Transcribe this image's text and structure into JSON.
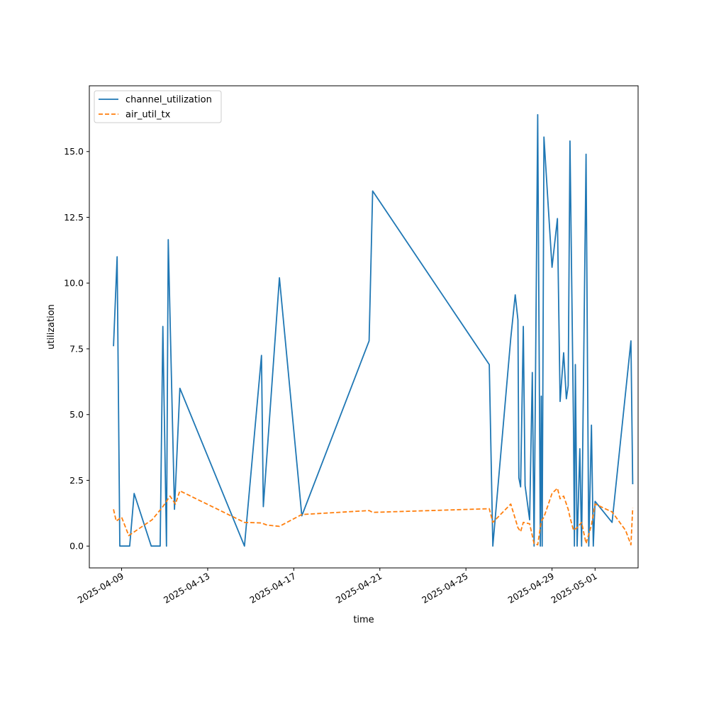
{
  "chart_data": {
    "type": "line",
    "title": "",
    "xlabel": "time",
    "ylabel": "utilization",
    "x_axis_type": "date",
    "xlim": [
      "2025-04-07 12:00",
      "2025-05-03 00:00"
    ],
    "ylim": [
      -0.83,
      17.5
    ],
    "grid": false,
    "legend": "top-left",
    "x_ticks": [
      "2025-04-09",
      "2025-04-13",
      "2025-04-17",
      "2025-04-21",
      "2025-04-25",
      "2025-04-29",
      "2025-05-01"
    ],
    "y_ticks": [
      "0.0",
      "2.5",
      "5.0",
      "7.5",
      "10.0",
      "12.5",
      "15.0"
    ],
    "series": [
      {
        "name": "channel_utilization",
        "color": "#1f77b4",
        "style": "solid",
        "points": [
          [
            "2025-04-08 15:00",
            7.6
          ],
          [
            "2025-04-08 19:00",
            11.0
          ],
          [
            "2025-04-08 22:00",
            0.0
          ],
          [
            "2025-04-09 09:00",
            0.0
          ],
          [
            "2025-04-09 14:00",
            2.0
          ],
          [
            "2025-04-10 09:00",
            0.0
          ],
          [
            "2025-04-10 19:00",
            0.0
          ],
          [
            "2025-04-10 22:00",
            8.35
          ],
          [
            "2025-04-11 02:00",
            0.0
          ],
          [
            "2025-04-11 04:00",
            11.65
          ],
          [
            "2025-04-11 11:00",
            1.4
          ],
          [
            "2025-04-11 17:00",
            6.0
          ],
          [
            "2025-04-14 17:00",
            0.0
          ],
          [
            "2025-04-15 12:00",
            7.25
          ],
          [
            "2025-04-15 14:00",
            1.5
          ],
          [
            "2025-04-16 08:00",
            10.2
          ],
          [
            "2025-04-17 09:00",
            1.15
          ],
          [
            "2025-04-20 12:00",
            7.8
          ],
          [
            "2025-04-20 16:00",
            13.5
          ],
          [
            "2025-04-26 02:00",
            6.9
          ],
          [
            "2025-04-26 06:00",
            0.0
          ],
          [
            "2025-04-27 02:00",
            7.9
          ],
          [
            "2025-04-27 07:00",
            9.55
          ],
          [
            "2025-04-27 10:00",
            8.6
          ],
          [
            "2025-04-27 11:00",
            2.6
          ],
          [
            "2025-04-27 13:00",
            2.25
          ],
          [
            "2025-04-27 16:00",
            8.35
          ],
          [
            "2025-04-27 18:00",
            2.3
          ],
          [
            "2025-04-27 23:00",
            1.0
          ],
          [
            "2025-04-28 02:00",
            6.6
          ],
          [
            "2025-04-28 04:00",
            0.0
          ],
          [
            "2025-04-28 08:00",
            16.4
          ],
          [
            "2025-04-28 11:00",
            0.0
          ],
          [
            "2025-04-28 12:00",
            5.7
          ],
          [
            "2025-04-28 13:00",
            0.0
          ],
          [
            "2025-04-28 15:00",
            15.55
          ],
          [
            "2025-04-29 00:00",
            10.6
          ],
          [
            "2025-04-29 06:00",
            12.45
          ],
          [
            "2025-04-29 09:00",
            5.5
          ],
          [
            "2025-04-29 13:00",
            7.35
          ],
          [
            "2025-04-29 16:00",
            5.6
          ],
          [
            "2025-04-29 18:00",
            6.1
          ],
          [
            "2025-04-29 20:00",
            15.4
          ],
          [
            "2025-04-30 00:00",
            4.5
          ],
          [
            "2025-04-30 01:00",
            0.0
          ],
          [
            "2025-04-30 02:00",
            6.9
          ],
          [
            "2025-04-30 04:00",
            0.0
          ],
          [
            "2025-04-30 07:00",
            3.7
          ],
          [
            "2025-04-30 09:00",
            0.0
          ],
          [
            "2025-04-30 14:00",
            14.9
          ],
          [
            "2025-04-30 17:00",
            0.0
          ],
          [
            "2025-04-30 20:00",
            4.6
          ],
          [
            "2025-04-30 22:00",
            0.0
          ],
          [
            "2025-05-01 00:00",
            1.7
          ],
          [
            "2025-05-01 19:00",
            0.9
          ],
          [
            "2025-05-02 16:00",
            7.8
          ],
          [
            "2025-05-02 18:00",
            2.35
          ]
        ]
      },
      {
        "name": "air_util_tx",
        "color": "#ff7f0e",
        "style": "dashed",
        "points": [
          [
            "2025-04-08 15:00",
            1.4
          ],
          [
            "2025-04-08 18:00",
            0.95
          ],
          [
            "2025-04-09 00:00",
            1.1
          ],
          [
            "2025-04-09 08:00",
            0.4
          ],
          [
            "2025-04-10 10:00",
            1.0
          ],
          [
            "2025-04-10 22:00",
            1.5
          ],
          [
            "2025-04-11 06:00",
            1.9
          ],
          [
            "2025-04-11 12:00",
            1.6
          ],
          [
            "2025-04-11 17:00",
            2.1
          ],
          [
            "2025-04-14 17:00",
            0.9
          ],
          [
            "2025-04-15 12:00",
            0.88
          ],
          [
            "2025-04-15 18:00",
            0.8
          ],
          [
            "2025-04-16 08:00",
            0.75
          ],
          [
            "2025-04-17 09:00",
            1.2
          ],
          [
            "2025-04-20 12:00",
            1.35
          ],
          [
            "2025-04-20 16:00",
            1.28
          ],
          [
            "2025-04-26 02:00",
            1.42
          ],
          [
            "2025-04-26 06:00",
            0.9
          ],
          [
            "2025-04-27 02:00",
            1.6
          ],
          [
            "2025-04-27 10:00",
            0.7
          ],
          [
            "2025-04-27 13:00",
            0.55
          ],
          [
            "2025-04-27 16:00",
            0.9
          ],
          [
            "2025-04-27 23:00",
            0.85
          ],
          [
            "2025-04-28 04:00",
            0.1
          ],
          [
            "2025-04-28 08:00",
            0.05
          ],
          [
            "2025-04-28 12:00",
            0.95
          ],
          [
            "2025-04-28 15:00",
            1.1
          ],
          [
            "2025-04-29 00:00",
            2.0
          ],
          [
            "2025-04-29 06:00",
            2.2
          ],
          [
            "2025-04-29 09:00",
            1.8
          ],
          [
            "2025-04-29 13:00",
            1.9
          ],
          [
            "2025-04-29 18:00",
            1.4
          ],
          [
            "2025-04-29 20:00",
            1.1
          ],
          [
            "2025-04-30 00:00",
            0.6
          ],
          [
            "2025-04-30 04:00",
            0.7
          ],
          [
            "2025-04-30 09:00",
            0.9
          ],
          [
            "2025-04-30 14:00",
            0.1
          ],
          [
            "2025-04-30 20:00",
            0.8
          ],
          [
            "2025-05-01 00:00",
            1.6
          ],
          [
            "2025-05-01 19:00",
            1.3
          ],
          [
            "2025-05-02 10:00",
            0.6
          ],
          [
            "2025-05-02 16:00",
            0.05
          ],
          [
            "2025-05-02 18:00",
            1.45
          ]
        ]
      }
    ]
  }
}
